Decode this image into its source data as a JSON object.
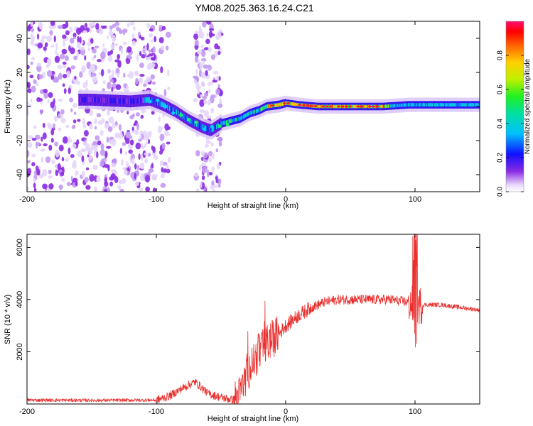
{
  "title": "YM08.2025.363.16.24.C21",
  "chart_data": [
    {
      "type": "heatmap",
      "name": "spectrogram",
      "xlabel": "Height of straight line (km)",
      "ylabel": "Frequency (Hz)",
      "xlim": [
        -200,
        150
      ],
      "ylim": [
        -50,
        50
      ],
      "xticks": [
        -200,
        -100,
        0,
        100
      ],
      "yticks": [
        -40,
        -20,
        0,
        20,
        40
      ],
      "xtick_labels": [
        "-200",
        "-100",
        "0",
        "100"
      ],
      "ytick_labels": [
        "-40",
        "-20",
        "0",
        "20",
        "40"
      ],
      "colorbar": {
        "label": "Normalized spectral amplitude",
        "range": [
          0,
          1
        ],
        "ticks": [
          0.0,
          0.2,
          0.4,
          0.6,
          0.8
        ],
        "tick_labels": [
          "0.0",
          "0.2",
          "0.4",
          "0.6",
          "0.8"
        ]
      },
      "center_frequency_track": {
        "x": [
          -150,
          -120,
          -105,
          -95,
          -85,
          -75,
          -65,
          -58,
          -50,
          -45,
          -35,
          -28,
          -20,
          -15,
          -5,
          0,
          10,
          25,
          50,
          75,
          95,
          105,
          150
        ],
        "y": [
          4,
          3,
          4,
          1,
          -3,
          -8,
          -12,
          -14,
          -10,
          -9,
          -7,
          -4,
          -2,
          0,
          1,
          2,
          1,
          0,
          0,
          0,
          1,
          1,
          1
        ]
      }
    },
    {
      "type": "line",
      "name": "snr",
      "xlabel": "Height of straight line (km)",
      "ylabel": "SNR (10 * v/v)",
      "xlim": [
        -200,
        150
      ],
      "ylim": [
        0,
        6500
      ],
      "xticks": [
        -200,
        -100,
        0,
        100
      ],
      "yticks": [
        2000,
        4000,
        6000
      ],
      "xtick_labels": [
        "-200",
        "-100",
        "0",
        "100"
      ],
      "ytick_labels": [
        "2000",
        "4000",
        "6000"
      ],
      "series_color": "#e8302e",
      "envelope": {
        "x": [
          -200,
          -150,
          -100,
          -90,
          -80,
          -70,
          -60,
          -50,
          -40,
          -35,
          -30,
          -25,
          -20,
          -15,
          -10,
          -5,
          0,
          10,
          20,
          30,
          40,
          60,
          80,
          95,
          100,
          105,
          120,
          150
        ],
        "y": [
          150,
          140,
          150,
          300,
          600,
          850,
          400,
          250,
          150,
          400,
          1200,
          1600,
          2000,
          2300,
          2500,
          2700,
          3000,
          3400,
          3700,
          3900,
          4000,
          4000,
          4000,
          3900,
          3700,
          3800,
          3800,
          3600
        ]
      }
    }
  ]
}
